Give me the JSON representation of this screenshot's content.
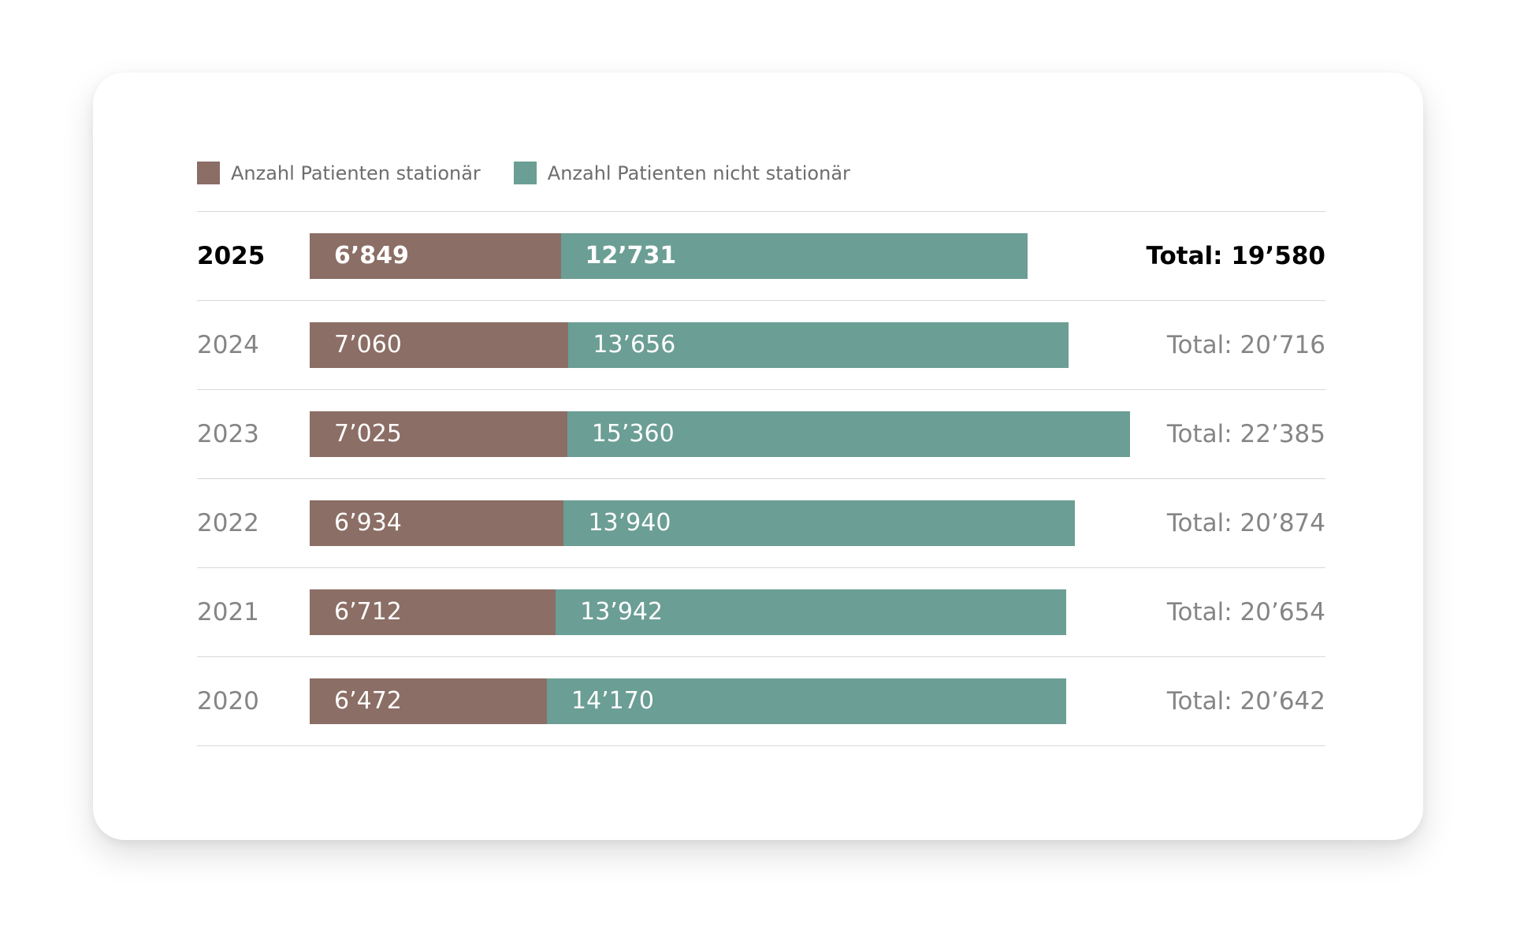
{
  "colors": {
    "stationaer": "#8b6e65",
    "nicht_stationaer": "#6b9e94"
  },
  "legend": [
    {
      "label": "Anzahl Patienten stationär",
      "color": "#8b6e65"
    },
    {
      "label": "Anzahl Patienten nicht stationär",
      "color": "#6b9e94"
    }
  ],
  "chart_data": {
    "type": "bar",
    "orientation": "horizontal",
    "stacked": true,
    "categories": [
      "2025",
      "2024",
      "2023",
      "2022",
      "2021",
      "2020"
    ],
    "series": [
      {
        "name": "Anzahl Patienten stationär",
        "values": [
          6849,
          7060,
          7025,
          6934,
          6712,
          6472
        ],
        "labels": [
          "6’849",
          "7’060",
          "7’025",
          "6’934",
          "6’712",
          "6’472"
        ]
      },
      {
        "name": "Anzahl Patienten nicht stationär",
        "values": [
          12731,
          13656,
          15360,
          13940,
          13942,
          14170
        ],
        "labels": [
          "12’731",
          "13’656",
          "15’360",
          "13’940",
          "13’942",
          "14’170"
        ]
      }
    ],
    "totals": [
      "Total: 19’580",
      "Total: 20’716",
      "Total: 22’385",
      "Total: 20’874",
      "Total: 20’654",
      "Total: 20’642"
    ],
    "highlighted_category": "2025",
    "xlim": [
      0,
      22385
    ],
    "grid": false,
    "legend_position": "top-left"
  }
}
